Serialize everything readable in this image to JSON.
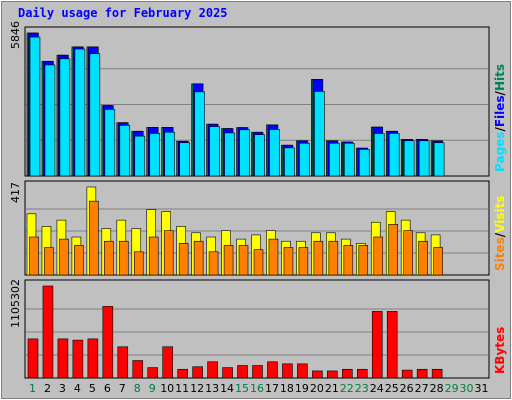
{
  "title": "Daily usage for February 2025",
  "colors": {
    "background": "#c0c0c0",
    "panel": "#c0c0c0",
    "grid": "#808080",
    "hits": "#00805c",
    "files": "#0000ff",
    "pages": "#00e0ff",
    "visits": "#ff8000",
    "sites": "#ffff00",
    "kbytes": "#ff0000",
    "weekend_label": "#008040",
    "weekday_label": "#000080"
  },
  "chart_data": [
    {
      "type": "bar",
      "name_panel": "usage",
      "max_label": "5846",
      "ylim": [
        0,
        5846
      ],
      "categories": [
        "1",
        "2",
        "3",
        "4",
        "5",
        "6",
        "7",
        "8",
        "9",
        "10",
        "11",
        "12",
        "13",
        "14",
        "15",
        "16",
        "17",
        "18",
        "19",
        "20",
        "21",
        "22",
        "23",
        "24",
        "25",
        "26",
        "27",
        "28",
        "29",
        "30",
        "31"
      ],
      "series": [
        {
          "name": "Hits",
          "values": [
            5846,
            4690,
            4940,
            5280,
            5280,
            2880,
            2180,
            1830,
            1990,
            1990,
            1420,
            3770,
            2120,
            1940,
            1980,
            1790,
            2090,
            1260,
            1440,
            3950,
            1440,
            1390,
            1140,
            2000,
            1830,
            1500,
            1500,
            1440,
            0,
            0,
            0
          ]
        },
        {
          "name": "Files",
          "values": [
            5846,
            4690,
            4940,
            5280,
            5280,
            2880,
            2180,
            1830,
            1990,
            1990,
            1420,
            3770,
            2120,
            1940,
            1980,
            1790,
            2090,
            1260,
            1440,
            3950,
            1440,
            1390,
            1140,
            2000,
            1830,
            1500,
            1500,
            1440,
            0,
            0,
            0
          ]
        },
        {
          "name": "Pages",
          "values": [
            5680,
            4540,
            4790,
            5190,
            5000,
            2720,
            2070,
            1630,
            1740,
            1790,
            1360,
            3440,
            2020,
            1760,
            1890,
            1690,
            1900,
            1150,
            1340,
            3460,
            1340,
            1340,
            1090,
            1740,
            1740,
            1440,
            1440,
            1360,
            0,
            0,
            0
          ]
        }
      ],
      "legend": [
        "Pages",
        "/",
        "Files",
        "/",
        "Hits"
      ]
    },
    {
      "type": "bar",
      "name_panel": "visits",
      "max_label": "417",
      "ylim": [
        0,
        417
      ],
      "series": [
        {
          "name": "Sites",
          "values": [
            290,
            230,
            260,
            180,
            417,
            220,
            260,
            220,
            310,
            300,
            230,
            200,
            180,
            210,
            170,
            190,
            210,
            160,
            160,
            200,
            200,
            170,
            150,
            250,
            300,
            260,
            200,
            190,
            0,
            0,
            0
          ]
        },
        {
          "name": "Visits",
          "values": [
            180,
            130,
            170,
            140,
            350,
            160,
            160,
            110,
            180,
            210,
            150,
            160,
            110,
            140,
            140,
            120,
            170,
            130,
            130,
            160,
            160,
            140,
            140,
            180,
            240,
            210,
            160,
            130,
            0,
            0,
            0
          ]
        }
      ],
      "legend": [
        "Sites",
        "/",
        "Visits"
      ]
    },
    {
      "type": "bar",
      "name_panel": "kbytes",
      "max_label": "1105302",
      "ylim": [
        0,
        1105302
      ],
      "series": [
        {
          "name": "KBytes",
          "values": [
            470000,
            1105302,
            470000,
            455000,
            470000,
            860000,
            375000,
            210000,
            125000,
            375000,
            105000,
            135000,
            195000,
            125000,
            150000,
            150000,
            195000,
            170000,
            170000,
            85000,
            85000,
            105000,
            105000,
            800000,
            800000,
            95000,
            105000,
            105000,
            0,
            0,
            0
          ]
        }
      ],
      "legend": [
        "KBytes"
      ]
    }
  ],
  "weekend_days": [
    1,
    8,
    9,
    15,
    16,
    22,
    23,
    29,
    30
  ]
}
